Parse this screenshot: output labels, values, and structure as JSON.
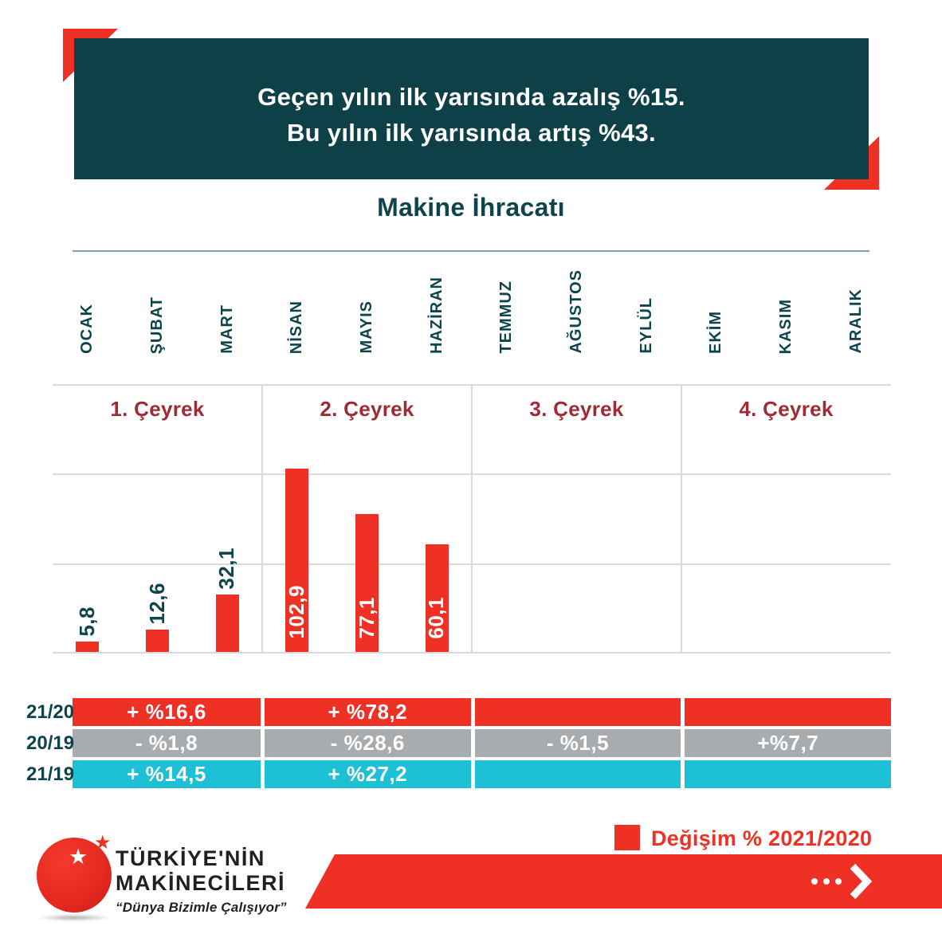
{
  "banner": {
    "line1": "Geçen yılın ilk yarısında azalış %15.",
    "line2": "Bu yılın ilk yarısında artış %43."
  },
  "chart_data": {
    "type": "bar",
    "title": "Makine İhracatı",
    "categories": [
      "OCAK",
      "ŞUBAT",
      "MART",
      "NİSAN",
      "MAYIS",
      "HAZİRAN",
      "TEMMUZ",
      "AĞUSTOS",
      "EYLÜL",
      "EKİM",
      "KASIM",
      "ARALIK"
    ],
    "values": [
      5.8,
      12.6,
      32.1,
      102.9,
      77.1,
      60.1,
      null,
      null,
      null,
      null,
      null,
      null
    ],
    "quarters": [
      "1. Çeyrek",
      "2. Çeyrek",
      "3. Çeyrek",
      "4. Çeyrek"
    ],
    "ylim": [
      0,
      150
    ],
    "gridline_step": 50,
    "grid": true,
    "bar_color": "#EE3124",
    "decimal_separator": ","
  },
  "table": {
    "rows": [
      {
        "label": "21/20",
        "color": "#EE3124",
        "cells": [
          "+ %16,6",
          "+ %78,2",
          "",
          ""
        ]
      },
      {
        "label": "20/19",
        "color": "#A9ACAF",
        "cells": [
          "- %1,8",
          "- %28,6",
          "- %1,5",
          "+%7,7"
        ]
      },
      {
        "label": "21/19",
        "color": "#1EC0D5",
        "cells": [
          "+ %14,5",
          "+ %27,2",
          "",
          ""
        ]
      }
    ]
  },
  "legend": {
    "label": "Değişim % 2021/2020",
    "color": "#EE3124"
  },
  "logo": {
    "line1": "TÜRKİYE'NİN",
    "line2": "MAKİNECİLERİ",
    "tagline": "“Dünya Bizimle Çalışıyor”"
  },
  "colors": {
    "accent_red": "#EE3124",
    "banner_teal": "#0D4047",
    "text_teal": "#0E444C",
    "quarter_crimson": "#9E2B36",
    "row_gray": "#A9ACAF",
    "row_cyan": "#1EC0D5",
    "gridline": "#DADADA"
  }
}
